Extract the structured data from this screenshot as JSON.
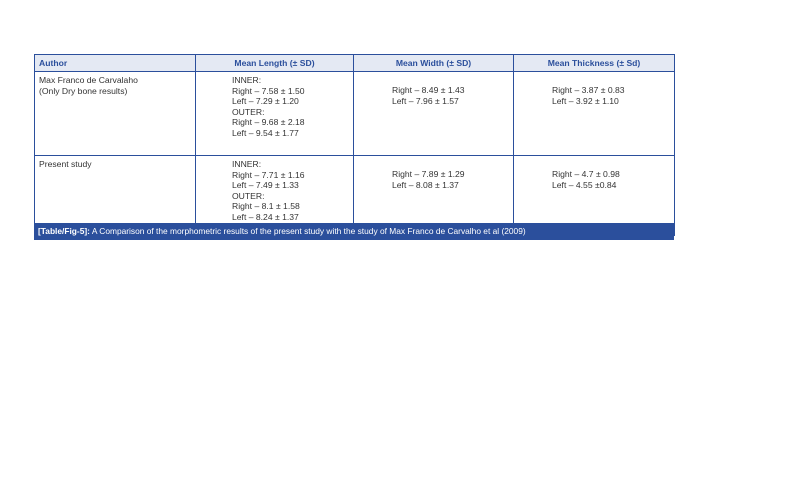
{
  "table": {
    "headers": [
      "Author",
      "Mean Length (± SD)",
      "Mean Width (± SD)",
      "Mean Thickness (± Sd)"
    ],
    "rows": [
      {
        "author": [
          "Max Franco de Carvalaho",
          "(Only Dry bone results)"
        ],
        "length": [
          "INNER:",
          "Right – 7.58 ± 1.50",
          "Left – 7.29 ± 1.20",
          "OUTER:",
          "Right – 9.68 ± 2.18",
          "Left – 9.54 ± 1.77"
        ],
        "width": [
          "Right – 8.49 ± 1.43",
          "Left – 7.96 ± 1.57"
        ],
        "thickness": [
          "Right – 3.87 ± 0.83",
          "Left – 3.92 ± 1.10"
        ]
      },
      {
        "author": [
          "Present study"
        ],
        "length": [
          "INNER:",
          "Right – 7.71 ± 1.16",
          "Left – 7.49 ± 1.33",
          "OUTER:",
          "Right – 8.1 ± 1.58",
          "Left – 8.24 ± 1.37"
        ],
        "width": [
          "Right – 7.89 ± 1.29",
          "Left – 8.08 ± 1.37"
        ],
        "thickness": [
          "Right – 4.7 ± 0.98",
          "Left – 4.55 ±0.84"
        ]
      }
    ]
  },
  "caption": {
    "label": "[Table/Fig-5]:",
    "text": " A Comparison of the morphometric results of the present study with the study of Max Franco de Carvalho et al (2009)"
  },
  "colors": {
    "accent": "#2b4f9c",
    "header_bg": "#e4e9f3"
  }
}
